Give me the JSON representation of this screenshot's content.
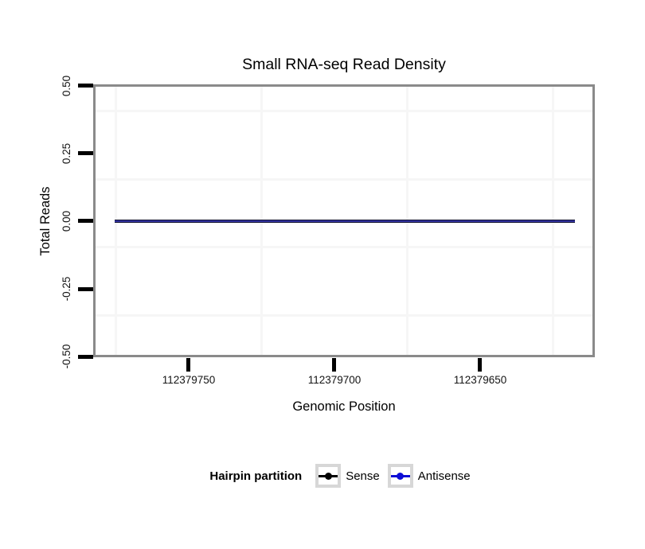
{
  "chart": {
    "title": "Small RNA-seq Read Density",
    "x_axis": {
      "label": "Genomic Position",
      "tick_labels": [
        "112379750",
        "112379700",
        "112379650"
      ]
    },
    "y_axis": {
      "label": "Total Reads",
      "tick_labels": [
        "0.50",
        "0.25",
        "0.00",
        "-0.25",
        "-0.50"
      ]
    },
    "legend": {
      "title": "Hairpin partition",
      "items": [
        {
          "label": "Sense",
          "color": "#000000"
        },
        {
          "label": "Antisense",
          "color": "#0d0dd6"
        }
      ]
    }
  },
  "chart_data": {
    "type": "line",
    "title": "Small RNA-seq Read Density",
    "xlabel": "Genomic Position",
    "ylabel": "Total Reads",
    "x_ticks": [
      112379750,
      112379700,
      112379650
    ],
    "x_reversed": true,
    "x_visible_range": [
      112379783,
      112379611
    ],
    "ylim": [
      -0.5,
      0.5
    ],
    "y_ticks": [
      0.5,
      0.25,
      0.0,
      -0.25,
      -0.5
    ],
    "series": [
      {
        "name": "Sense",
        "color": "#000000",
        "y_constant": 0
      },
      {
        "name": "Antisense",
        "color": "#0d0dd6",
        "y_constant": 0
      }
    ],
    "legend_title": "Hairpin partition",
    "legend_position": "bottom",
    "grid": "minor gridlines only, very light gray, white panel",
    "panel_border_color": "#8a8a8a"
  }
}
